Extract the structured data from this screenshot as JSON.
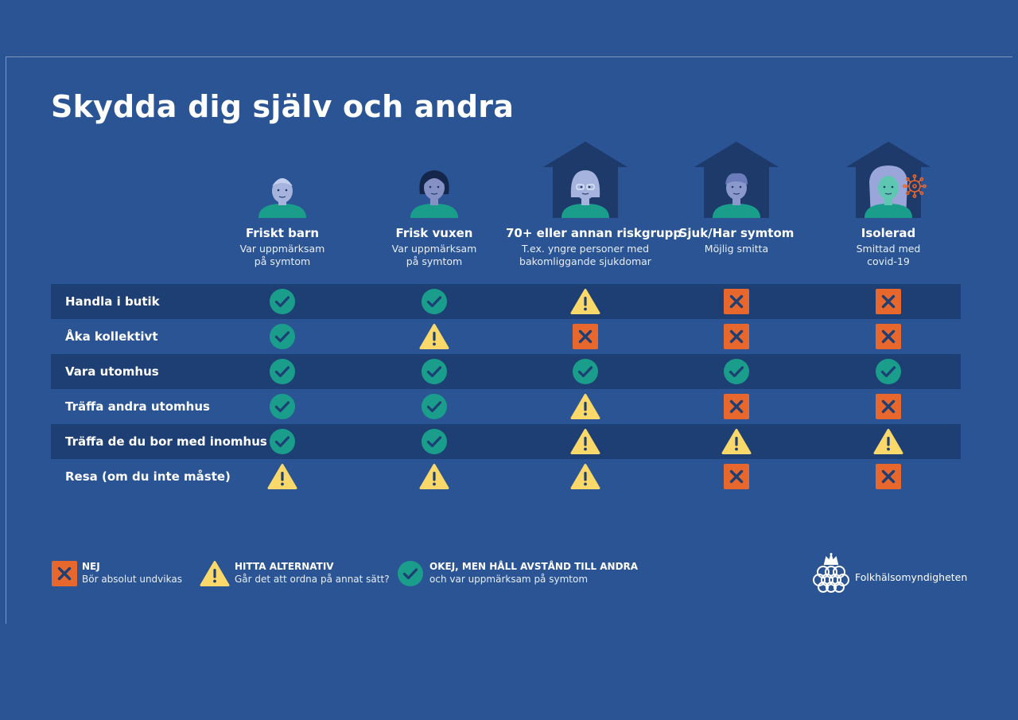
{
  "title": "Skydda dig själv och andra",
  "columns": [
    {
      "name": "Friskt barn",
      "sub": "Var uppmärksam\npå symtom",
      "figure": "child-figure",
      "house": false
    },
    {
      "name": "Frisk vuxen",
      "sub": "Var uppmärksam\npå symtom",
      "figure": "adult-figure",
      "house": false
    },
    {
      "name": "70+ eller annan riskgrupp",
      "sub": "T.ex. yngre personer med\nbakomliggande sjukdomar",
      "figure": "elderly-figure",
      "house": true
    },
    {
      "name": "Sjuk/Har symtom",
      "sub": "Möjlig smitta",
      "figure": "sick-figure",
      "house": true
    },
    {
      "name": "Isolerad",
      "sub": "Smittad med\ncovid-19",
      "figure": "isolated-figure",
      "house": true
    }
  ],
  "rows": [
    {
      "label": "Handla i butik",
      "values": [
        "ok",
        "ok",
        "warn",
        "no",
        "no"
      ]
    },
    {
      "label": "Åka kollektivt",
      "values": [
        "ok",
        "warn",
        "no",
        "no",
        "no"
      ]
    },
    {
      "label": "Vara utomhus",
      "values": [
        "ok",
        "ok",
        "ok",
        "ok",
        "ok"
      ]
    },
    {
      "label": "Träffa andra utomhus",
      "values": [
        "ok",
        "ok",
        "warn",
        "no",
        "no"
      ]
    },
    {
      "label": "Träffa de du bor med inomhus",
      "values": [
        "ok",
        "ok",
        "warn",
        "warn",
        "warn"
      ]
    },
    {
      "label": "Resa (om du inte måste)",
      "values": [
        "warn",
        "warn",
        "warn",
        "no",
        "no"
      ]
    }
  ],
  "legend": {
    "no": {
      "title": "NEJ",
      "text": "Bör absolut undvikas",
      "icon": "x-square-icon"
    },
    "warn": {
      "title": "HITTA ALTERNATIV",
      "text": "Går det att ordna på annat sätt?",
      "icon": "warning-triangle-icon"
    },
    "ok": {
      "title": "OKEJ, MEN HÅLL AVSTÅND TILL ANDRA",
      "text": "och var uppmärksam på symtom",
      "icon": "check-circle-icon"
    }
  },
  "logo_text": "Folkhälsomyndigheten",
  "colors": {
    "background": "#2a5494",
    "row_dark": "#1e3f73",
    "ok": "#1a9d8a",
    "warn": "#fbd86a",
    "no": "#e8672c",
    "icon_mark": "#1e3f73"
  }
}
